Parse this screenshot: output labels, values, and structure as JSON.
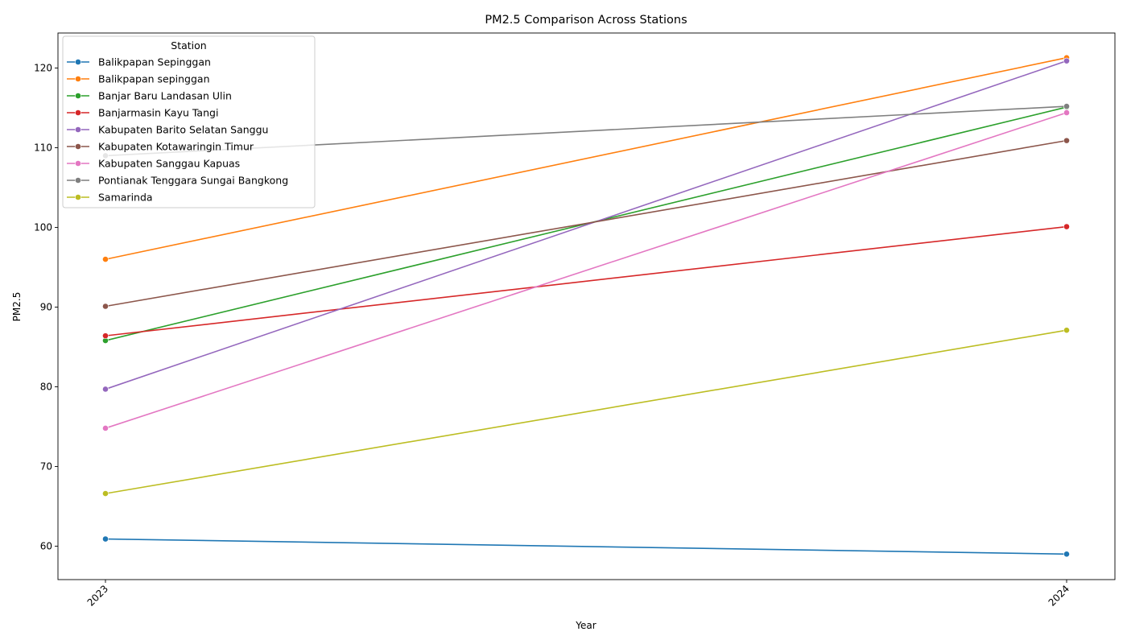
{
  "chart_data": {
    "type": "line",
    "title": "PM2.5 Comparison Across Stations",
    "xlabel": "Year",
    "ylabel": "PM2.5",
    "categories": [
      "2023",
      "2024"
    ],
    "ylim": [
      55.8,
      124.4
    ],
    "yticks": [
      60,
      70,
      80,
      90,
      100,
      110,
      120
    ],
    "grid": false,
    "legend": {
      "title": "Station",
      "placement": "top-left"
    },
    "series": [
      {
        "name": "Balikpapan Sepinggan",
        "color": "#1f77b4",
        "values": [
          60.9,
          59.0
        ]
      },
      {
        "name": "Balikpapan sepinggan",
        "color": "#ff7f0e",
        "values": [
          96.0,
          121.3
        ]
      },
      {
        "name": "Banjar Baru Landasan Ulin",
        "color": "#2ca02c",
        "values": [
          85.8,
          115.1
        ]
      },
      {
        "name": "Banjarmasin Kayu Tangi",
        "color": "#d62728",
        "values": [
          86.4,
          100.1
        ]
      },
      {
        "name": "Kabupaten Barito Selatan Sanggu",
        "color": "#9467bd",
        "values": [
          79.7,
          120.9
        ]
      },
      {
        "name": "Kabupaten Kotawaringin Timur",
        "color": "#8c564b",
        "values": [
          90.1,
          110.9
        ]
      },
      {
        "name": "Kabupaten Sanggau Kapuas",
        "color": "#e377c2",
        "values": [
          74.8,
          114.4
        ]
      },
      {
        "name": "Pontianak Tenggara Sungai Bangkong",
        "color": "#7f7f7f",
        "values": [
          109.0,
          115.2
        ]
      },
      {
        "name": "Samarinda",
        "color": "#bcbd22",
        "values": [
          66.6,
          87.1
        ]
      }
    ]
  }
}
